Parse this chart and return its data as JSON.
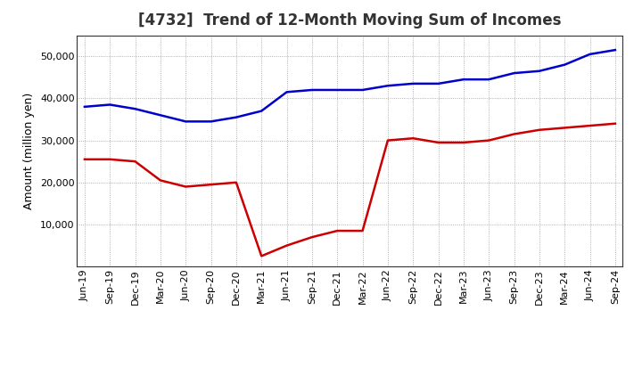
{
  "title": "[4732]  Trend of 12-Month Moving Sum of Incomes",
  "ylabel": "Amount (million yen)",
  "x_labels": [
    "Jun-19",
    "Sep-19",
    "Dec-19",
    "Mar-20",
    "Jun-20",
    "Sep-20",
    "Dec-20",
    "Mar-21",
    "Jun-21",
    "Sep-21",
    "Dec-21",
    "Mar-22",
    "Jun-22",
    "Sep-22",
    "Dec-22",
    "Mar-23",
    "Jun-23",
    "Sep-23",
    "Dec-23",
    "Mar-24",
    "Jun-24",
    "Sep-24"
  ],
  "ordinary_income": [
    38000,
    38500,
    37500,
    36000,
    34500,
    34500,
    35500,
    37000,
    41500,
    42000,
    42000,
    42000,
    43000,
    43500,
    43500,
    44500,
    44500,
    46000,
    46500,
    48000,
    50500,
    51500
  ],
  "net_income": [
    25500,
    25500,
    25000,
    20500,
    19000,
    19500,
    20000,
    2500,
    5000,
    7000,
    8500,
    8500,
    30000,
    30500,
    29500,
    29500,
    30000,
    31500,
    32500,
    33000,
    33500,
    34000
  ],
  "ordinary_color": "#0000cc",
  "net_color": "#cc0000",
  "ylim_min": 0,
  "ylim_max": 55000,
  "yticks": [
    10000,
    20000,
    30000,
    40000,
    50000
  ],
  "grid_color": "#999999",
  "background_color": "#ffffff",
  "title_fontsize": 12,
  "label_fontsize": 9,
  "tick_fontsize": 8
}
